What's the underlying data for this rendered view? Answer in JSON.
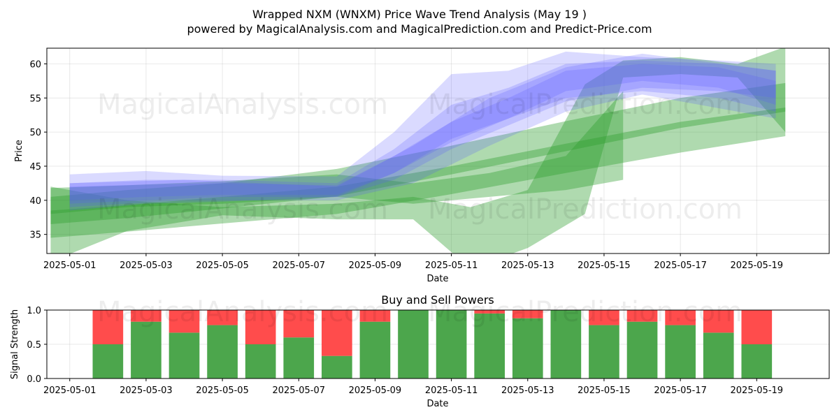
{
  "title_line1": "Wrapped NXM (WNXM) Price Wave Trend Analysis (May 19 )",
  "title_line2": "powered by MagicalAnalysis.com and MagicalPrediction.com and Predict-Price.com",
  "watermarks": [
    "MagicalAnalysis.com",
    "MagicalPrediction.com",
    "MagicalAnalysis.com",
    "MagicalPrediction.com",
    "MagicalAnalysis.com",
    "MagicalPrediction.com"
  ],
  "colors": {
    "green": "#2e9e2e",
    "blue": "#5555ff",
    "buy": "#4ca64c",
    "sell": "#ff4c4c"
  },
  "chart_data": [
    {
      "type": "area",
      "title": "",
      "xlabel": "Date",
      "ylabel": "Price",
      "x_ticks": [
        "2025-05-01",
        "2025-05-03",
        "2025-05-05",
        "2025-05-07",
        "2025-05-09",
        "2025-05-11",
        "2025-05-13",
        "2025-05-15",
        "2025-05-17",
        "2025-05-19"
      ],
      "y_ticks": [
        35,
        40,
        45,
        50,
        55,
        60
      ],
      "xlim": [
        "2025-04-30 09:36",
        "2025-05-20 21:36"
      ],
      "ylim": [
        32.2,
        62.3
      ],
      "grid": true,
      "series": [
        {
          "color": "green",
          "band": [
            [
              "2025-04-30 12:00",
              36.5,
              40.5
            ],
            [
              "2025-05-02 12:00",
              37.4,
              41.5
            ],
            [
              "2025-05-05 00:00",
              38.8,
              42.5
            ],
            [
              "2025-05-08 00:00",
              40.6,
              44.6
            ],
            [
              "2025-05-11 00:00",
              43.8,
              48.0
            ],
            [
              "2025-05-14 00:00",
              47.2,
              51.6
            ],
            [
              "2025-05-17 00:00",
              50.6,
              55.0
            ],
            [
              "2025-05-19 18:00",
              53.0,
              57.2
            ]
          ]
        },
        {
          "color": "green",
          "band": [
            [
              "2025-04-30 12:00",
              34.5,
              38.5
            ],
            [
              "2025-05-02 12:00",
              35.4,
              39.3
            ],
            [
              "2025-05-05 00:00",
              36.6,
              40.5
            ],
            [
              "2025-05-08 00:00",
              38.0,
              42.0
            ],
            [
              "2025-05-11 00:00",
              40.9,
              45.0
            ],
            [
              "2025-05-14 00:00",
              44.0,
              48.3
            ],
            [
              "2025-05-17 00:00",
              47.0,
              51.5
            ],
            [
              "2025-05-19 18:00",
              49.4,
              53.6
            ]
          ]
        },
        {
          "color": "green",
          "band": [
            [
              "2025-04-30 12:00",
              31.0,
              42.0
            ],
            [
              "2025-05-02 12:00",
              35.5,
              40.0
            ],
            [
              "2025-05-05 00:00",
              37.8,
              39.0
            ],
            [
              "2025-05-08 00:00",
              37.2,
              39.5
            ],
            [
              "2025-05-10 00:00",
              37.2,
              40.5
            ],
            [
              "2025-05-11 12:00",
              30.0,
              39.0
            ],
            [
              "2025-05-13 00:00",
              33.0,
              41.5
            ],
            [
              "2025-05-14 12:00",
              38.0,
              57.0
            ],
            [
              "2025-05-15 12:00",
              58.0,
              60.5
            ],
            [
              "2025-05-17 00:00",
              58.5,
              61.0
            ],
            [
              "2025-05-18 12:00",
              58.0,
              60.0
            ],
            [
              "2025-05-19 18:00",
              50.0,
              62.5
            ]
          ]
        },
        {
          "color": "green",
          "band": [
            [
              "2025-04-30 12:00",
              38.0,
              41.8
            ],
            [
              "2025-05-02 12:00",
              39.0,
              42.2
            ],
            [
              "2025-05-05 00:00",
              39.5,
              42.8
            ],
            [
              "2025-05-08 00:00",
              40.5,
              43.8
            ],
            [
              "2025-05-10 00:00",
              39.5,
              42.5
            ],
            [
              "2025-05-12 00:00",
              40.5,
              44.0
            ],
            [
              "2025-05-14 00:00",
              41.5,
              46.5
            ],
            [
              "2025-05-15 12:00",
              43.0,
              56.0
            ]
          ]
        },
        {
          "color": "blue",
          "band": [
            [
              "2025-05-01 00:00",
              38.5,
              43.8
            ],
            [
              "2025-05-03 00:00",
              39.5,
              44.3
            ],
            [
              "2025-05-05 00:00",
              39.8,
              43.6
            ],
            [
              "2025-05-08 00:00",
              40.5,
              43.5
            ],
            [
              "2025-05-09 12:00",
              44.0,
              50.0
            ],
            [
              "2025-05-11 00:00",
              49.0,
              58.5
            ],
            [
              "2025-05-12 12:00",
              52.0,
              59.0
            ],
            [
              "2025-05-14 00:00",
              55.0,
              61.8
            ],
            [
              "2025-05-16 00:00",
              56.0,
              61.0
            ],
            [
              "2025-05-18 00:00",
              55.0,
              60.5
            ],
            [
              "2025-05-19 12:00",
              53.0,
              60.0
            ]
          ]
        },
        {
          "color": "blue",
          "band": [
            [
              "2025-05-01 00:00",
              39.5,
              42.5
            ],
            [
              "2025-05-03 00:00",
              40.0,
              43.0
            ],
            [
              "2025-05-05 00:00",
              40.5,
              43.0
            ],
            [
              "2025-05-08 00:00",
              40.5,
              42.5
            ],
            [
              "2025-05-09 12:00",
              43.0,
              47.5
            ],
            [
              "2025-05-11 00:00",
              47.5,
              54.0
            ],
            [
              "2025-05-12 12:00",
              51.0,
              56.5
            ],
            [
              "2025-05-14 00:00",
              54.5,
              60.0
            ],
            [
              "2025-05-16 00:00",
              56.5,
              60.5
            ],
            [
              "2025-05-18 00:00",
              56.0,
              60.0
            ],
            [
              "2025-05-19 12:00",
              55.0,
              59.0
            ]
          ]
        },
        {
          "color": "blue",
          "band": [
            [
              "2025-05-01 00:00",
              40.0,
              42.0
            ],
            [
              "2025-05-03 00:00",
              40.5,
              42.3
            ],
            [
              "2025-05-05 00:00",
              40.8,
              42.5
            ],
            [
              "2025-05-08 00:00",
              40.8,
              42.2
            ],
            [
              "2025-05-09 12:00",
              44.0,
              46.5
            ],
            [
              "2025-05-11 00:00",
              48.5,
              51.5
            ],
            [
              "2025-05-12 12:00",
              52.0,
              55.0
            ],
            [
              "2025-05-14 00:00",
              56.0,
              59.0
            ],
            [
              "2025-05-16 00:00",
              57.5,
              60.0
            ],
            [
              "2025-05-18 00:00",
              56.5,
              59.5
            ],
            [
              "2025-05-19 12:00",
              54.0,
              57.5
            ]
          ]
        },
        {
          "color": "blue",
          "band": [
            [
              "2025-05-01 00:00",
              39.0,
              42.5
            ],
            [
              "2025-05-04 00:00",
              40.0,
              43.0
            ],
            [
              "2025-05-08 00:00",
              40.0,
              42.0
            ],
            [
              "2025-05-10 00:00",
              42.5,
              48.0
            ],
            [
              "2025-05-12 00:00",
              48.0,
              55.0
            ],
            [
              "2025-05-14 00:00",
              53.0,
              59.5
            ],
            [
              "2025-05-16 00:00",
              55.5,
              61.5
            ],
            [
              "2025-05-19 12:00",
              52.0,
              59.0
            ]
          ]
        }
      ]
    },
    {
      "type": "bar",
      "title": "Buy and Sell Powers",
      "xlabel": "Date",
      "ylabel": "Signal Strength",
      "x_ticks": [
        "2025-05-01",
        "2025-05-03",
        "2025-05-05",
        "2025-05-07",
        "2025-05-09",
        "2025-05-11",
        "2025-05-13",
        "2025-05-15",
        "2025-05-17",
        "2025-05-19"
      ],
      "y_ticks": [
        "0.0",
        "0.5",
        "1.0"
      ],
      "xlim": [
        "2025-04-30 09:36",
        "2025-05-20 21:36"
      ],
      "ylim": [
        0,
        1
      ],
      "categories": [
        "2025-05-02",
        "2025-05-03",
        "2025-05-04",
        "2025-05-05",
        "2025-05-06",
        "2025-05-07",
        "2025-05-08",
        "2025-05-09",
        "2025-05-10",
        "2025-05-11",
        "2025-05-12",
        "2025-05-13",
        "2025-05-14",
        "2025-05-15",
        "2025-05-16",
        "2025-05-17",
        "2025-05-18",
        "2025-05-19"
      ],
      "series": [
        {
          "color": "buy",
          "values": [
            0.5,
            0.83,
            0.67,
            0.78,
            0.5,
            0.6,
            0.33,
            0.83,
            1.0,
            1.0,
            0.95,
            0.88,
            1.0,
            0.78,
            0.83,
            0.78,
            0.67,
            0.5
          ]
        },
        {
          "color": "sell",
          "values": [
            0.5,
            0.17,
            0.33,
            0.22,
            0.5,
            0.4,
            0.67,
            0.17,
            0.0,
            0.0,
            0.05,
            0.12,
            0.0,
            0.22,
            0.17,
            0.22,
            0.33,
            0.5
          ]
        }
      ]
    }
  ]
}
